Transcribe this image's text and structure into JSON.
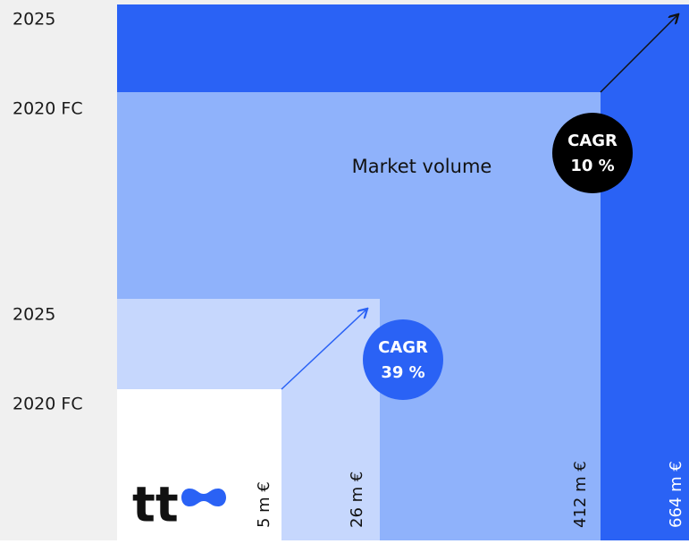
{
  "year_labels": [
    "2025",
    "2020 FC",
    "2025",
    "2020 FC"
  ],
  "title": "Market volume",
  "cagr": [
    {
      "label": "CAGR",
      "value": "10 %"
    },
    {
      "label": "CAGR",
      "value": "39 %"
    }
  ],
  "volumes": [
    "5 m €",
    "26 m €",
    "412 m €",
    "664 m €"
  ],
  "logo": "tt"
}
